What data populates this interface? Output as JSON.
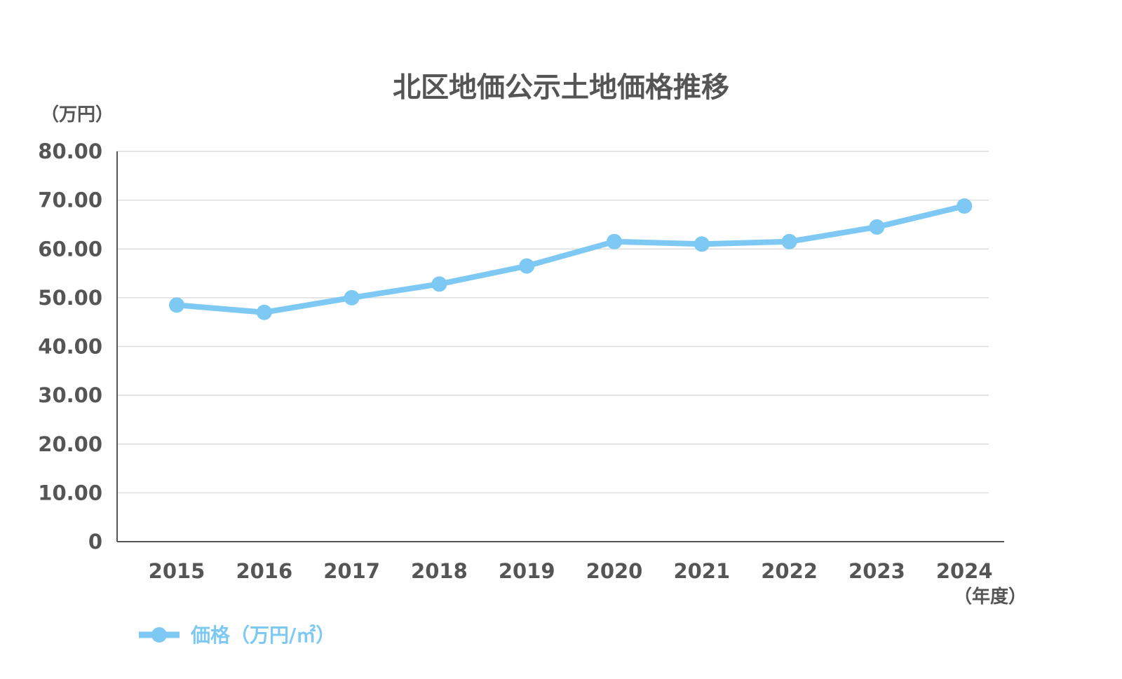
{
  "colors": {
    "series": "#7dc9f3",
    "axis": "#555555",
    "grid": "#dddddd",
    "text": "#555555"
  },
  "chart_data": {
    "type": "line",
    "title": "北区地価公示土地価格推移",
    "y_unit_label": "（万円）",
    "x_unit_label": "（年度）",
    "categories": [
      "2015",
      "2016",
      "2017",
      "2018",
      "2019",
      "2020",
      "2021",
      "2022",
      "2023",
      "2024"
    ],
    "series": [
      {
        "name": "価格（万円/㎡）",
        "color": "#7dc9f3",
        "values": [
          48.5,
          47.0,
          50.0,
          52.8,
          56.5,
          61.5,
          61.0,
          61.5,
          64.5,
          68.8
        ]
      }
    ],
    "ylim": [
      0,
      80
    ],
    "yticks": [
      0,
      10,
      20,
      30,
      40,
      50,
      60,
      70,
      80
    ],
    "ytick_labels": [
      "0",
      "10.00",
      "20.00",
      "30.00",
      "40.00",
      "50.00",
      "60.00",
      "70.00",
      "80.00"
    ],
    "grid": true,
    "legend_position": "bottom-left"
  }
}
